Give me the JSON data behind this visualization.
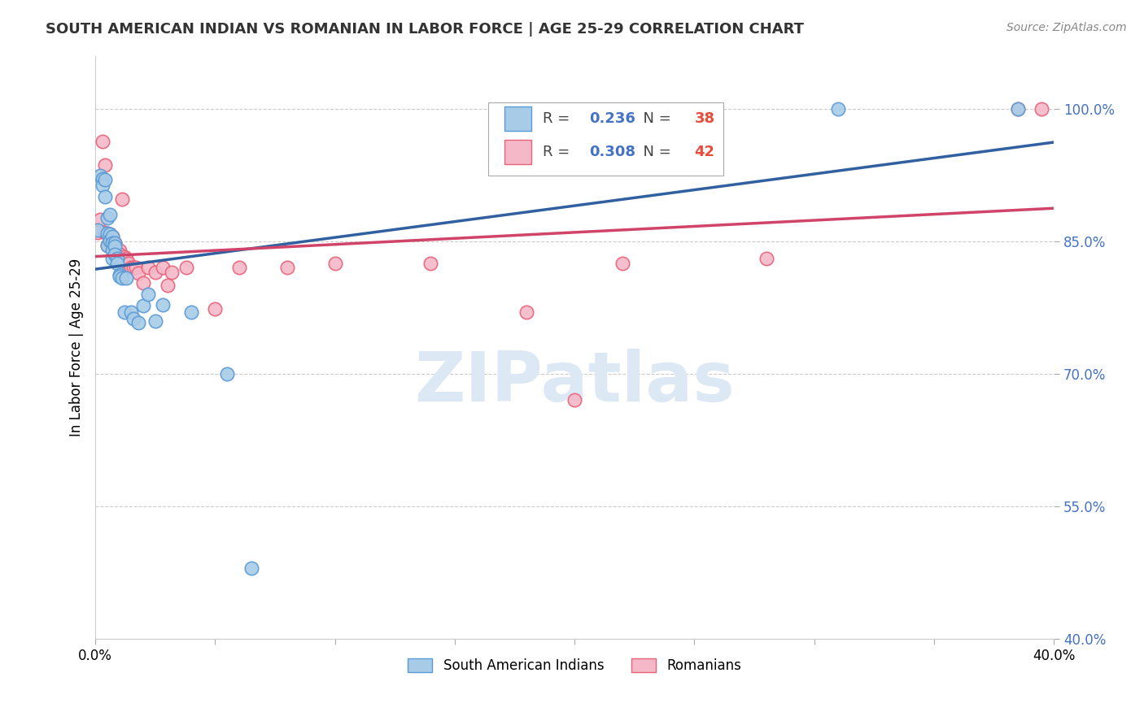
{
  "title": "SOUTH AMERICAN INDIAN VS ROMANIAN IN LABOR FORCE | AGE 25-29 CORRELATION CHART",
  "source": "Source: ZipAtlas.com",
  "ylabel": "In Labor Force | Age 25-29",
  "xlim": [
    0.0,
    0.4
  ],
  "ylim": [
    0.4,
    1.06
  ],
  "ytick_labels": [
    "40.0%",
    "55.0%",
    "70.0%",
    "85.0%",
    "100.0%"
  ],
  "ytick_values": [
    0.4,
    0.55,
    0.7,
    0.85,
    1.0
  ],
  "xtick_labels": [
    "0.0%",
    "",
    "",
    "",
    "",
    "",
    "",
    "",
    "40.0%"
  ],
  "xtick_values": [
    0.0,
    0.05,
    0.1,
    0.15,
    0.2,
    0.25,
    0.3,
    0.35,
    0.4
  ],
  "blue_R": 0.236,
  "blue_N": 38,
  "pink_R": 0.308,
  "pink_N": 42,
  "blue_color": "#a8cce8",
  "pink_color": "#f4b8c8",
  "blue_edge_color": "#5b9bd5",
  "pink_edge_color": "#e8637a",
  "blue_line_color": "#3060a0",
  "pink_line_color": "#d0446a",
  "legend_blue_label": "South American Indians",
  "legend_pink_label": "Romanians",
  "blue_x": [
    0.001,
    0.002,
    0.003,
    0.003,
    0.004,
    0.004,
    0.005,
    0.005,
    0.005,
    0.006,
    0.006,
    0.006,
    0.007,
    0.007,
    0.007,
    0.007,
    0.008,
    0.008,
    0.008,
    0.009,
    0.009,
    0.01,
    0.01,
    0.011,
    0.012,
    0.013,
    0.015,
    0.016,
    0.018,
    0.02,
    0.022,
    0.025,
    0.028,
    0.04,
    0.055,
    0.065,
    0.31,
    0.385
  ],
  "blue_y": [
    0.863,
    0.924,
    0.921,
    0.913,
    0.92,
    0.9,
    0.876,
    0.859,
    0.845,
    0.88,
    0.858,
    0.851,
    0.855,
    0.848,
    0.84,
    0.83,
    0.848,
    0.844,
    0.835,
    0.83,
    0.825,
    0.812,
    0.81,
    0.808,
    0.77,
    0.808,
    0.77,
    0.762,
    0.758,
    0.777,
    0.79,
    0.76,
    0.778,
    0.77,
    0.7,
    0.48,
    1.0,
    1.0
  ],
  "pink_x": [
    0.001,
    0.002,
    0.003,
    0.004,
    0.004,
    0.005,
    0.005,
    0.006,
    0.006,
    0.007,
    0.007,
    0.008,
    0.008,
    0.009,
    0.01,
    0.01,
    0.011,
    0.012,
    0.013,
    0.014,
    0.015,
    0.016,
    0.017,
    0.018,
    0.02,
    0.022,
    0.025,
    0.028,
    0.03,
    0.032,
    0.038,
    0.05,
    0.06,
    0.08,
    0.1,
    0.14,
    0.18,
    0.2,
    0.22,
    0.28,
    0.385,
    0.395
  ],
  "pink_y": [
    0.86,
    0.875,
    0.963,
    0.936,
    0.86,
    0.858,
    0.845,
    0.858,
    0.848,
    0.855,
    0.845,
    0.848,
    0.84,
    0.838,
    0.84,
    0.835,
    0.898,
    0.832,
    0.83,
    0.825,
    0.82,
    0.82,
    0.82,
    0.814,
    0.803,
    0.82,
    0.815,
    0.82,
    0.8,
    0.815,
    0.82,
    0.773,
    0.82,
    0.82,
    0.825,
    0.825,
    0.77,
    0.67,
    0.825,
    0.83,
    1.0,
    1.0
  ]
}
